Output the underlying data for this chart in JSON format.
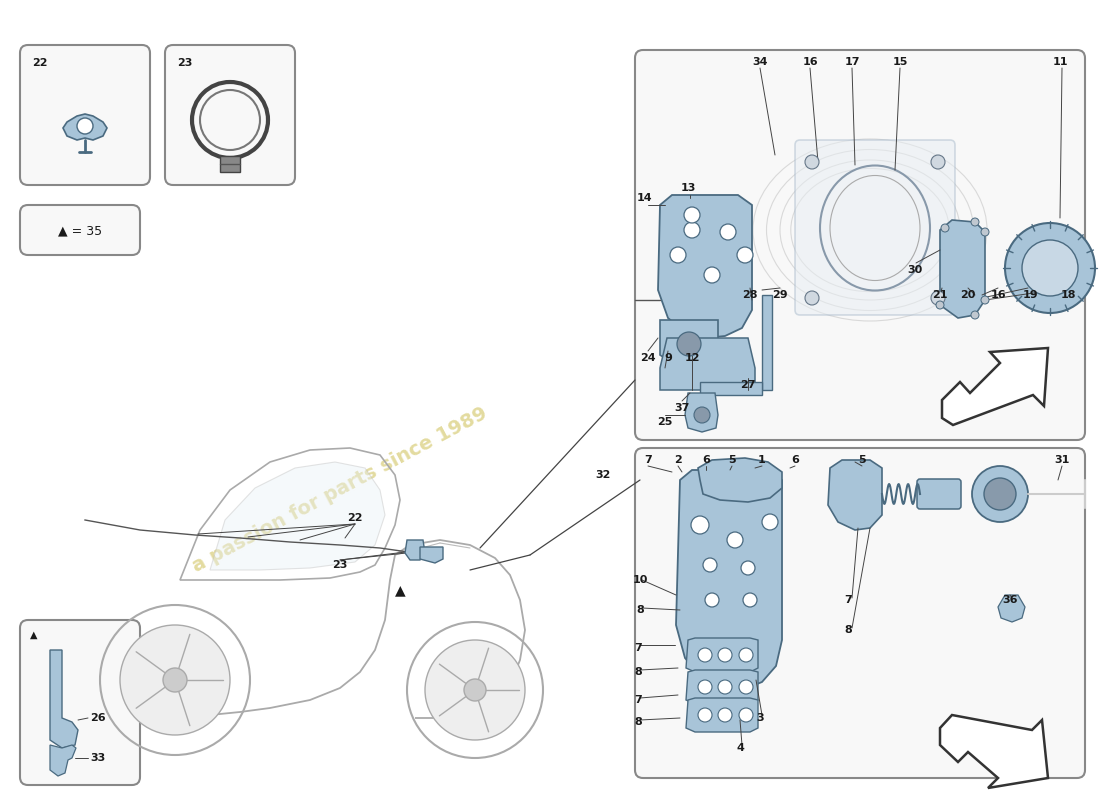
{
  "bg": "#ffffff",
  "blue": "#a8c4d8",
  "blue_edge": "#4a6a80",
  "gray_edge": "#888888",
  "light_gray": "#f0f0f0",
  "dark_text": "#1a1a1a",
  "watermark_color": "#c8b840",
  "line_col": "#444444",
  "box_fill": "#f8f8f8",
  "fig_w": 11.0,
  "fig_h": 8.0,
  "dpi": 100
}
